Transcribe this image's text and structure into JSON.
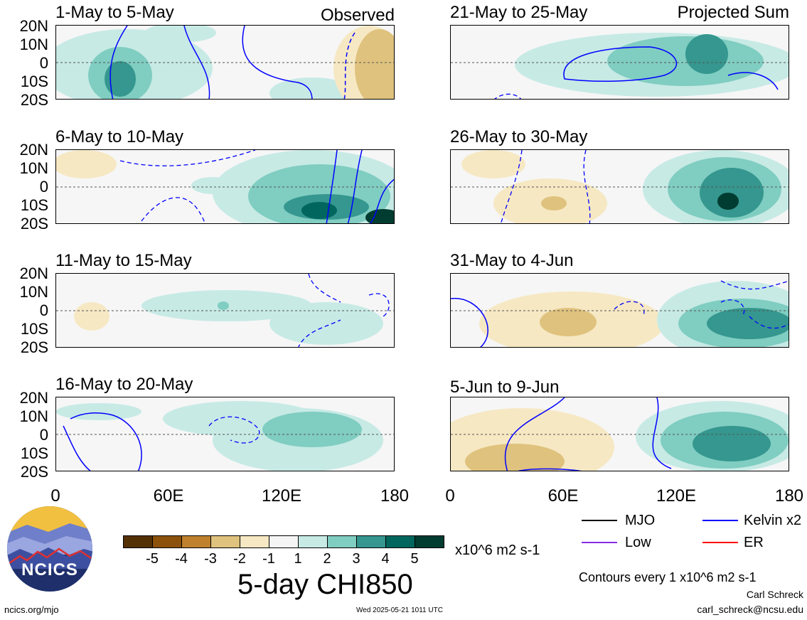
{
  "panels": {
    "p1": {
      "title": "1-May to 5-May",
      "label": "Observed"
    },
    "p2": {
      "title": "6-May to 10-May",
      "label": ""
    },
    "p3": {
      "title": "11-May to 15-May",
      "label": ""
    },
    "p4": {
      "title": "16-May to 20-May",
      "label": ""
    },
    "p5": {
      "title": "21-May to 25-May",
      "label": "Projected Sum"
    },
    "p6": {
      "title": "26-May to 30-May",
      "label": ""
    },
    "p7": {
      "title": "31-May to 4-Jun",
      "label": ""
    },
    "p8": {
      "title": "5-Jun to 9-Jun",
      "label": ""
    }
  },
  "lat_labels": [
    "20N",
    "10N",
    "0",
    "10S",
    "20S"
  ],
  "lon_labels": [
    "0",
    "60E",
    "120E",
    "180"
  ],
  "colorbar": {
    "labels": [
      "-5",
      "-4",
      "-3",
      "-2",
      "-1",
      "1",
      "2",
      "3",
      "4",
      "5"
    ],
    "colors": [
      "#543005",
      "#8c510a",
      "#bf812d",
      "#dfc27d",
      "#f6e8c3",
      "#f5f5f5",
      "#c7eae5",
      "#80cdc1",
      "#35978f",
      "#01665e",
      "#003c30"
    ],
    "units": "x10^6 m2 s-1",
    "title": "5-day CHI850"
  },
  "legend": {
    "mjo": "MJO",
    "kelvin": "Kelvin x2",
    "low": "Low",
    "er": "ER",
    "colors": {
      "mjo": "#000000",
      "kelvin": "#0000ff",
      "low": "#8a2be2",
      "er": "#ff0000"
    }
  },
  "contour_note": "Contours every 1 x10^6 m2 s-1",
  "author": "Carl Schreck",
  "email": "carl_schreck@ncsu.edu",
  "site": "ncics.org/mjo",
  "timestamp": "Wed 2025-05-21 1011 UTC",
  "logo_text": "NCICS"
}
